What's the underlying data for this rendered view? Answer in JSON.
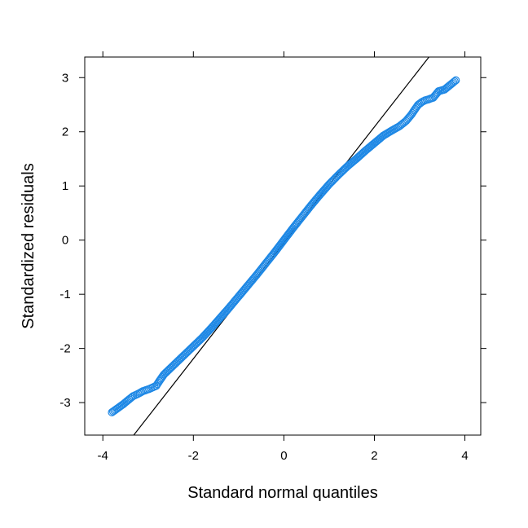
{
  "chart_data": {
    "type": "scatter",
    "title": "",
    "xlabel": "Standard normal quantiles",
    "ylabel": "Standardized residuals",
    "xlim": [
      -4.4,
      4.35
    ],
    "ylim": [
      -3.6,
      3.38
    ],
    "xticks": [
      -4,
      -2,
      0,
      2,
      4
    ],
    "yticks": [
      -3,
      -2,
      -1,
      0,
      1,
      2,
      3
    ],
    "xtick_labels": [
      "-4",
      "-2",
      "0",
      "2",
      "4"
    ],
    "ytick_labels": [
      "-3",
      "-2",
      "-1",
      "0",
      "1",
      "2",
      "3"
    ],
    "grid": false,
    "reference_line": {
      "slope": 1.07,
      "intercept": -0.05
    },
    "series": [
      {
        "marker": "open-circle",
        "color": "#1e88e5",
        "points": [
          [
            -3.8,
            -3.18
          ],
          [
            -3.55,
            -3.03
          ],
          [
            -3.42,
            -2.94
          ],
          [
            -3.33,
            -2.88
          ],
          [
            -3.25,
            -2.85
          ],
          [
            -3.18,
            -2.82
          ],
          [
            -3.12,
            -2.79
          ],
          [
            -3.05,
            -2.77
          ],
          [
            -2.98,
            -2.75
          ],
          [
            -2.9,
            -2.72
          ],
          [
            -2.82,
            -2.69
          ],
          [
            -2.75,
            -2.6
          ],
          [
            -2.65,
            -2.48
          ],
          [
            -2.55,
            -2.4
          ],
          [
            -2.45,
            -2.32
          ],
          [
            -2.3,
            -2.2
          ],
          [
            -2.15,
            -2.08
          ],
          [
            -2.0,
            -1.96
          ],
          [
            -1.8,
            -1.8
          ],
          [
            -1.6,
            -1.62
          ],
          [
            -1.4,
            -1.43
          ],
          [
            -1.2,
            -1.24
          ],
          [
            -1.0,
            -1.04
          ],
          [
            -0.8,
            -0.84
          ],
          [
            -0.6,
            -0.64
          ],
          [
            -0.4,
            -0.43
          ],
          [
            -0.2,
            -0.22
          ],
          [
            0.0,
            0.0
          ],
          [
            0.2,
            0.22
          ],
          [
            0.4,
            0.43
          ],
          [
            0.6,
            0.64
          ],
          [
            0.8,
            0.84
          ],
          [
            1.0,
            1.03
          ],
          [
            1.2,
            1.2
          ],
          [
            1.4,
            1.36
          ],
          [
            1.6,
            1.5
          ],
          [
            1.8,
            1.65
          ],
          [
            2.0,
            1.79
          ],
          [
            2.2,
            1.93
          ],
          [
            2.4,
            2.03
          ],
          [
            2.55,
            2.1
          ],
          [
            2.7,
            2.2
          ],
          [
            2.82,
            2.32
          ],
          [
            2.9,
            2.42
          ],
          [
            2.97,
            2.5
          ],
          [
            3.05,
            2.55
          ],
          [
            3.12,
            2.58
          ],
          [
            3.2,
            2.6
          ],
          [
            3.3,
            2.63
          ],
          [
            3.42,
            2.75
          ],
          [
            3.55,
            2.78
          ],
          [
            3.8,
            2.95
          ]
        ]
      }
    ]
  }
}
